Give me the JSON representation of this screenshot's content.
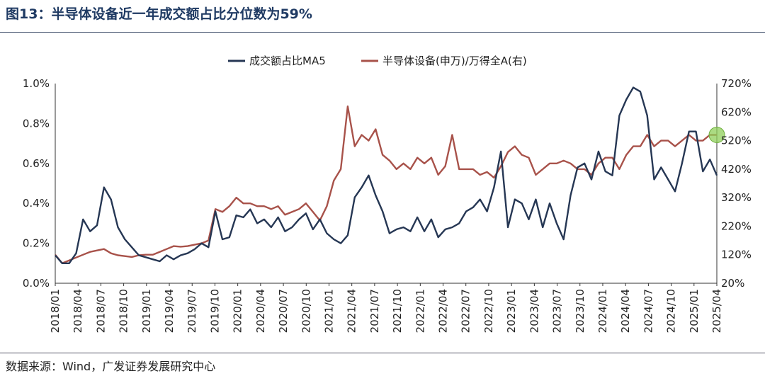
{
  "header": {
    "title": "图13：半导体设备近一年成交额占比分位数为59%"
  },
  "footer": {
    "source": "数据来源：Wind，广发证券发展研究中心"
  },
  "chart_data": {
    "type": "line",
    "title": "图13：半导体设备近一年成交额占比分位数为59%",
    "x_tick_labels": [
      "2018/01",
      "2018/04",
      "2018/07",
      "2018/10",
      "2019/01",
      "2019/04",
      "2019/07",
      "2019/10",
      "2020/01",
      "2020/04",
      "2020/07",
      "2020/10",
      "2021/01",
      "2021/04",
      "2021/07",
      "2021/10",
      "2022/01",
      "2022/04",
      "2022/07",
      "2022/10",
      "2023/01",
      "2023/04",
      "2023/07",
      "2023/10",
      "2024/01",
      "2024/04",
      "2024/07",
      "2024/10",
      "2025/01",
      "2025/04"
    ],
    "y_left": {
      "label": "",
      "ticks": [
        "0.0%",
        "0.2%",
        "0.4%",
        "0.6%",
        "0.8%",
        "1.0%"
      ],
      "lim": [
        0.0,
        1.0
      ]
    },
    "y_right": {
      "label": "",
      "ticks": [
        "20%",
        "120%",
        "220%",
        "320%",
        "420%",
        "520%",
        "620%",
        "720%"
      ],
      "lim": [
        20,
        720
      ]
    },
    "legend_position": "top-center",
    "highlight": {
      "series": "半导体设备(申万)/万得全A(右)",
      "x": "2025/04",
      "y": 540,
      "color": "#8fcf5a"
    },
    "series": [
      {
        "name": "成交额占比MA5",
        "axis": "left",
        "color": "#263754",
        "values": [
          0.14,
          0.1,
          0.1,
          0.15,
          0.32,
          0.26,
          0.29,
          0.48,
          0.42,
          0.28,
          0.22,
          0.18,
          0.14,
          0.13,
          0.12,
          0.11,
          0.14,
          0.12,
          0.14,
          0.15,
          0.17,
          0.2,
          0.18,
          0.36,
          0.22,
          0.23,
          0.34,
          0.33,
          0.37,
          0.3,
          0.32,
          0.28,
          0.33,
          0.26,
          0.28,
          0.32,
          0.35,
          0.27,
          0.32,
          0.25,
          0.22,
          0.2,
          0.24,
          0.43,
          0.48,
          0.54,
          0.44,
          0.36,
          0.25,
          0.27,
          0.28,
          0.26,
          0.33,
          0.26,
          0.32,
          0.23,
          0.27,
          0.28,
          0.3,
          0.36,
          0.38,
          0.42,
          0.36,
          0.48,
          0.66,
          0.28,
          0.42,
          0.4,
          0.32,
          0.42,
          0.28,
          0.4,
          0.3,
          0.22,
          0.44,
          0.58,
          0.6,
          0.52,
          0.66,
          0.56,
          0.54,
          0.84,
          0.92,
          0.98,
          0.96,
          0.84,
          0.52,
          0.58,
          0.52,
          0.46,
          0.6,
          0.76,
          0.76,
          0.56,
          0.62,
          0.54
        ]
      },
      {
        "name": "半导体设备(申万)/万得全A(右)",
        "axis": "right",
        "color": "#a8524a",
        "values": [
          120,
          90,
          100,
          110,
          120,
          130,
          135,
          140,
          125,
          118,
          115,
          112,
          118,
          120,
          120,
          130,
          140,
          150,
          148,
          150,
          155,
          160,
          170,
          280,
          270,
          290,
          320,
          300,
          300,
          290,
          290,
          280,
          290,
          260,
          270,
          280,
          300,
          270,
          240,
          290,
          380,
          420,
          640,
          500,
          540,
          520,
          560,
          470,
          450,
          420,
          440,
          420,
          460,
          440,
          460,
          400,
          430,
          540,
          420,
          420,
          420,
          400,
          410,
          390,
          430,
          480,
          500,
          470,
          460,
          400,
          420,
          440,
          440,
          450,
          440,
          420,
          420,
          400,
          440,
          460,
          460,
          420,
          470,
          500,
          500,
          540,
          500,
          520,
          520,
          500,
          520,
          540,
          520,
          520,
          540,
          540
        ]
      }
    ]
  }
}
